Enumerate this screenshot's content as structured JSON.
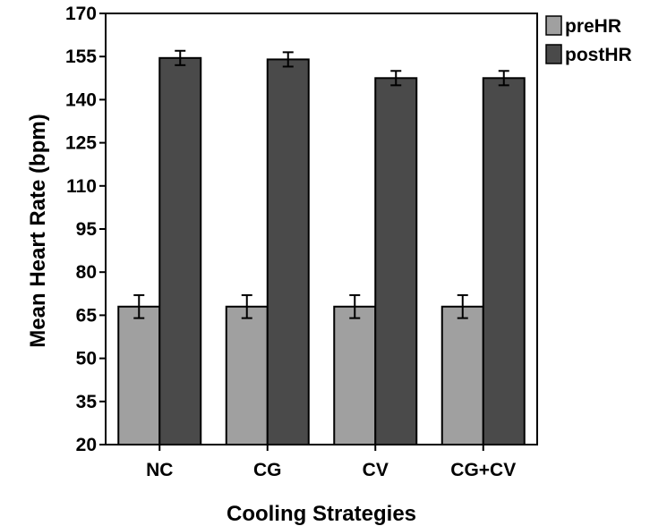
{
  "chart_data": {
    "type": "bar",
    "title": "",
    "xlabel": "Cooling Strategies",
    "ylabel": "Mean Heart Rate (bpm)",
    "categories": [
      "NC",
      "CG",
      "CV",
      "CG+CV"
    ],
    "series": [
      {
        "name": "preHR",
        "color": "#a0a0a0",
        "values": [
          68,
          68,
          68,
          68
        ],
        "error": [
          4,
          4,
          4,
          4
        ]
      },
      {
        "name": "postHR",
        "color": "#4a4a4a",
        "values": [
          154.5,
          154,
          147.5,
          147.5
        ],
        "error": [
          2.5,
          2.5,
          2.5,
          2.5
        ]
      }
    ],
    "ylim": [
      20,
      170
    ],
    "yticks": [
      20,
      35,
      50,
      65,
      80,
      95,
      110,
      125,
      140,
      155,
      170
    ],
    "grid": false,
    "legend_position": "top-right, outside plot"
  }
}
